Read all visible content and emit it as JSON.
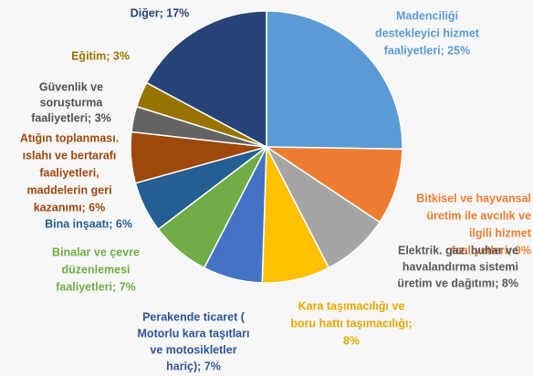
{
  "chart_data": {
    "type": "pie",
    "values": [
      25,
      9,
      8,
      8,
      7,
      7,
      6,
      6,
      3,
      3,
      17
    ],
    "value_labels": [
      [
        "Madenciliği",
        "destekleyici hizmet",
        "faaliyetleri; 25%"
      ],
      [
        "Bitkisel ve hayvansal",
        "üretim ile avcılık ve",
        "ilgili hizmet",
        "faaliyetleri; 9%"
      ],
      [
        "Elektrik. gaz. buhar ve",
        "havalandırma sistemi",
        "üretim ve dağıtımı; 8%"
      ],
      [
        "Kara taşımacılığı ve",
        "boru hattı taşımacılığı;",
        "8%"
      ],
      [
        "Perakende ticaret (",
        "Motorlu kara taşıtları",
        "ve motosikletler",
        "hariç); 7%"
      ],
      [
        "Binalar ve çevre",
        "düzenlemesi",
        "faaliyetleri; 7%"
      ],
      [
        "Bina inşaatı; 6%"
      ],
      [
        "Atığın toplanması.",
        "ıslahı ve bertarafı",
        "faaliyetleri,",
        "maddelerin geri",
        "kazanımı; 6%"
      ],
      [
        "Güvenlik ve",
        "soruşturma",
        "faaliyetleri; 3%"
      ],
      [
        "Eğitim; 3%"
      ],
      [
        "Diğer; 17%"
      ]
    ],
    "colors": [
      "#5b9bd5",
      "#ed7d31",
      "#a5a5a5",
      "#ffc000",
      "#4472c4",
      "#70ad47",
      "#255e91",
      "#9e480e",
      "#636363",
      "#997300",
      "#264478"
    ]
  }
}
